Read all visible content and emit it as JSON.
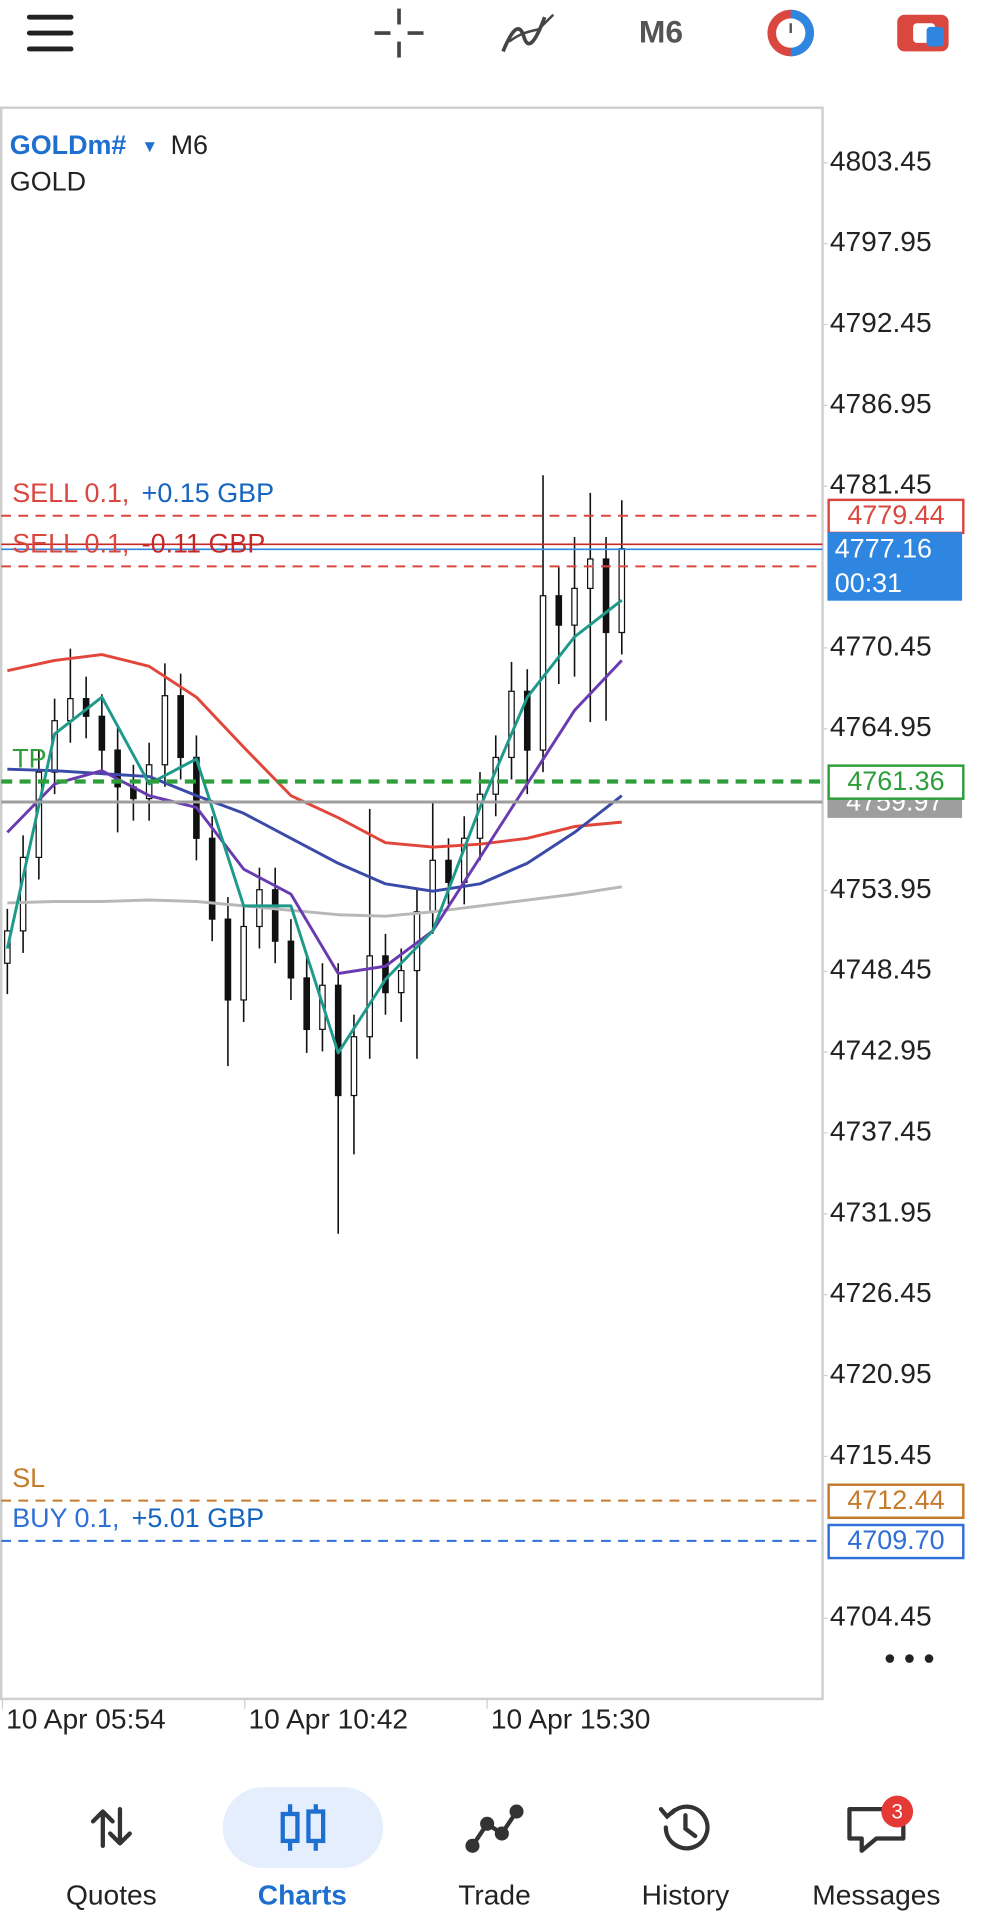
{
  "toolbar": {
    "timeframe": "M6"
  },
  "chart_data": {
    "type": "candlestick",
    "symbol": "GOLDm#",
    "timeframe": "M6",
    "description": "GOLD",
    "ylim": [
      4698.95,
      4807.2
    ],
    "yticks": [
      4803.45,
      4797.95,
      4792.45,
      4786.95,
      4781.45,
      4770.45,
      4764.95,
      4753.95,
      4748.45,
      4742.95,
      4737.45,
      4731.95,
      4726.45,
      4720.95,
      4715.45,
      4704.45
    ],
    "x_labels": [
      "10 Apr 05:54",
      "10 Apr 10:42",
      "10 Apr 15:30"
    ],
    "open": [
      4749.0,
      4751.2,
      4756.2,
      4762.0,
      4765.5,
      4767.0,
      4765.8,
      4763.5,
      4761.0,
      4760.2,
      4762.5,
      4767.2,
      4763.0,
      4757.5,
      4752.0,
      4746.5,
      4751.5,
      4754.0,
      4750.5,
      4748.0,
      4744.5,
      4747.5,
      4740.0,
      4744.0,
      4749.5,
      4747.0,
      4748.5,
      4752.5,
      4756.0,
      4754.5,
      4757.5,
      4760.5,
      4763.0,
      4767.5,
      4763.5,
      4774.0,
      4772.0,
      4774.5,
      4776.5,
      4771.5
    ],
    "high": [
      4752.7,
      4757.7,
      4763.5,
      4767.0,
      4770.4,
      4768.5,
      4767.3,
      4765.0,
      4762.5,
      4764.0,
      4769.4,
      4768.7,
      4764.5,
      4759.0,
      4753.5,
      4753.0,
      4755.5,
      4755.5,
      4752.0,
      4749.5,
      4749.0,
      4749.0,
      4745.5,
      4759.5,
      4751.0,
      4750.0,
      4754.0,
      4760.0,
      4757.5,
      4759.0,
      4762.0,
      4764.5,
      4769.5,
      4769.0,
      4782.2,
      4776.0,
      4778.0,
      4781.0,
      4778.0,
      4780.5
    ],
    "low": [
      4746.9,
      4749.7,
      4754.7,
      4760.5,
      4764.0,
      4764.3,
      4762.0,
      4757.9,
      4758.7,
      4758.7,
      4761.0,
      4761.5,
      4756.0,
      4750.5,
      4742.0,
      4745.0,
      4750.0,
      4749.0,
      4746.5,
      4742.9,
      4743.0,
      4730.6,
      4736.0,
      4742.5,
      4745.5,
      4745.0,
      4742.5,
      4751.0,
      4753.0,
      4753.0,
      4756.0,
      4759.0,
      4761.5,
      4760.5,
      4762.0,
      4768.0,
      4768.5,
      4765.4,
      4765.5,
      4770.0
    ],
    "close": [
      4751.2,
      4756.2,
      4762.0,
      4765.5,
      4767.0,
      4765.8,
      4763.5,
      4761.0,
      4760.2,
      4762.5,
      4767.2,
      4763.0,
      4757.5,
      4752.0,
      4746.5,
      4751.5,
      4754.0,
      4750.5,
      4748.0,
      4744.5,
      4747.5,
      4740.0,
      4744.0,
      4749.5,
      4747.0,
      4748.5,
      4752.5,
      4756.0,
      4754.5,
      4757.5,
      4760.5,
      4763.0,
      4767.5,
      4763.5,
      4774.0,
      4772.0,
      4774.5,
      4776.5,
      4771.5,
      4777.2
    ],
    "moving_averages": [
      {
        "color": "#e2463a",
        "values": [
          4768.9,
          4769.6,
          4770.0,
          4769.2,
          4767.1,
          4763.7,
          4760.4,
          4758.9,
          4757.2,
          4756.9,
          4757.1,
          4757.5,
          4758.3,
          4758.6
        ]
      },
      {
        "color": "#b8b8b8",
        "values": [
          4753.1,
          4753.2,
          4753.2,
          4753.3,
          4753.2,
          4752.9,
          4752.6,
          4752.3,
          4752.2,
          4752.5,
          4752.9,
          4753.3,
          4753.7,
          4754.2
        ]
      },
      {
        "color": "#3a4aa8",
        "values": [
          4762.2,
          4762.1,
          4761.9,
          4761.7,
          4760.4,
          4759.2,
          4757.5,
          4755.8,
          4754.4,
          4753.9,
          4754.4,
          4755.8,
          4757.9,
          4760.4
        ]
      },
      {
        "color": "#6a3bb0",
        "values": [
          4757.9,
          4761.2,
          4762.1,
          4760.4,
          4759.6,
          4755.4,
          4753.7,
          4748.3,
          4748.8,
          4751.2,
          4756.2,
          4761.2,
          4766.2,
          4769.6
        ]
      },
      {
        "color": "#1f9a8a",
        "values": [
          4750.0,
          4764.6,
          4767.1,
          4761.2,
          4762.9,
          4752.9,
          4752.9,
          4742.9,
          4747.9,
          4751.2,
          4759.6,
          4767.1,
          4771.2,
          4773.7
        ]
      }
    ],
    "orders": [
      {
        "text": "SELL 0.1,",
        "profit": "+0.15 GBP",
        "profit_color": "#1565c0",
        "price": 4779.44,
        "color": "#d9473f",
        "boxed": true
      },
      {
        "text": "SELL 0.1,",
        "profit": "-0.11 GBP",
        "profit_color": "#c62828",
        "price": 4776.0,
        "color": "#d9473f",
        "boxed": false
      },
      {
        "text": "TP",
        "price": 4761.36,
        "color": "#2e9e3a",
        "boxed": true
      },
      {
        "text": "SL",
        "price": 4712.44,
        "color": "#c67a2c",
        "boxed": true
      },
      {
        "text": "BUY 0.1,",
        "profit": "+5.01 GBP",
        "profit_color": "#1565c0",
        "price": {
          "value": 4709.7,
          "label": "4709.70"
        },
        "color": "#2f6fd6",
        "boxed": true
      }
    ],
    "level": {
      "price": 4759.97,
      "color": "#9e9e9e"
    },
    "ask": 4777.5,
    "bid": {
      "price": 4777.16,
      "countdown": "00:31",
      "color": "#2f86e0"
    }
  },
  "nav": {
    "tabs": [
      "Quotes",
      "Charts",
      "Trade",
      "History",
      "Messages"
    ],
    "active": 1,
    "badge": "3"
  }
}
